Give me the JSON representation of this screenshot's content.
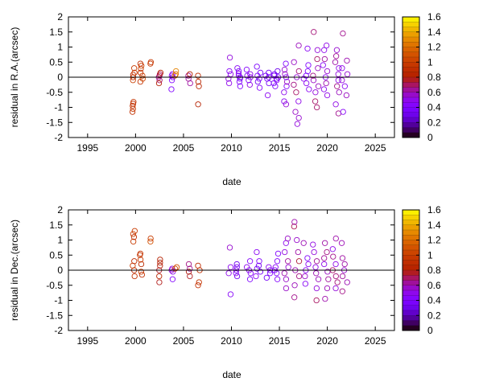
{
  "chart_data": [
    {
      "type": "scatter",
      "title": "",
      "xlabel": "date",
      "ylabel": "residual in R.A.(arcsec)",
      "xlim": [
        1993,
        2027
      ],
      "ylim": [
        -2,
        2
      ],
      "xticks": [
        1995,
        2000,
        2005,
        2010,
        2015,
        2020,
        2025
      ],
      "yticks": [
        -2,
        -1.5,
        -1,
        -0.5,
        0,
        0.5,
        1,
        1.5,
        2
      ],
      "zero_line": true,
      "grid": false,
      "marker": "open-circle",
      "colorbar": {
        "min": 0,
        "max": 1.6,
        "ticks": [
          0,
          0.2,
          0.4,
          0.6,
          0.8,
          1,
          1.2,
          1.4,
          1.6
        ],
        "colormap": "gnuplot-pm3d"
      },
      "clusters": [
        {
          "x": 1999.8,
          "xs": 0.12,
          "c": 0.9,
          "values": [
            -1.15,
            -1.05,
            -0.95,
            -0.88,
            -0.82,
            -0.1,
            0.0,
            0.08,
            0.15,
            0.3
          ]
        },
        {
          "x": 2000.6,
          "xs": 0.15,
          "c": 0.95,
          "values": [
            -0.15,
            -0.05,
            0.05,
            0.15,
            0.28,
            0.38,
            0.45
          ]
        },
        {
          "x": 2001.6,
          "xs": 0.05,
          "c": 1.0,
          "values": [
            0.45,
            0.5
          ]
        },
        {
          "x": 2002.5,
          "xs": 0.12,
          "c": 0.72,
          "values": [
            -0.2,
            -0.1,
            0.0,
            0.05,
            0.1,
            0.15
          ]
        },
        {
          "x": 2003.8,
          "xs": 0.1,
          "c": 0.5,
          "values": [
            -0.4,
            -0.1,
            0.0,
            0.05,
            0.1
          ]
        },
        {
          "x": 2004.2,
          "xs": 0.1,
          "c": 1.2,
          "values": [
            0.05,
            0.1,
            0.2
          ]
        },
        {
          "x": 2005.6,
          "xs": 0.1,
          "c": 0.72,
          "values": [
            -0.2,
            -0.05,
            0.05,
            0.1
          ]
        },
        {
          "x": 2006.6,
          "xs": 0.1,
          "c": 0.8,
          "values": [
            -0.9,
            -0.3,
            -0.15,
            0.05
          ]
        },
        {
          "x": 2009.8,
          "xs": 0.12,
          "c": 0.55,
          "values": [
            -0.2,
            -0.05,
            0.1,
            0.2,
            0.65
          ]
        },
        {
          "x": 2010.7,
          "xs": 0.25,
          "c": 0.4,
          "values": [
            -0.3,
            -0.15,
            -0.05,
            0.0,
            0.05,
            0.12,
            0.2,
            0.3
          ]
        },
        {
          "x": 2011.8,
          "xs": 0.25,
          "c": 0.45,
          "values": [
            -0.25,
            -0.1,
            0.0,
            0.05,
            0.1,
            0.25
          ]
        },
        {
          "x": 2012.8,
          "xs": 0.25,
          "c": 0.4,
          "values": [
            -0.35,
            -0.15,
            -0.05,
            0.05,
            0.15,
            0.35
          ]
        },
        {
          "x": 2013.8,
          "xs": 0.25,
          "c": 0.38,
          "values": [
            -0.6,
            -0.2,
            -0.05,
            0.0,
            0.05,
            0.15
          ]
        },
        {
          "x": 2014.7,
          "xs": 0.3,
          "c": 0.4,
          "values": [
            -0.3,
            -0.2,
            -0.1,
            -0.05,
            0.0,
            0.05,
            0.1,
            0.2
          ]
        },
        {
          "x": 2015.7,
          "xs": 0.3,
          "c": 0.5,
          "values": [
            -0.9,
            -0.8,
            -0.5,
            -0.3,
            -0.15,
            0.0,
            0.1,
            0.25,
            0.45
          ]
        },
        {
          "x": 2016.8,
          "xs": 0.3,
          "c": 0.6,
          "values": [
            -1.55,
            -1.35,
            -1.15,
            -0.8,
            -0.5,
            -0.25,
            0.0,
            0.2,
            0.5,
            1.05
          ]
        },
        {
          "x": 2017.8,
          "xs": 0.3,
          "c": 0.45,
          "values": [
            -0.4,
            -0.2,
            -0.05,
            0.05,
            0.2,
            0.4,
            0.95
          ]
        },
        {
          "x": 2018.8,
          "xs": 0.3,
          "c": 0.6,
          "values": [
            -1.0,
            -0.8,
            -0.5,
            -0.3,
            -0.1,
            0.05,
            0.3,
            0.6,
            0.9,
            1.5
          ]
        },
        {
          "x": 2019.8,
          "xs": 0.35,
          "c": 0.55,
          "values": [
            -0.6,
            -0.4,
            -0.2,
            0.0,
            0.2,
            0.4,
            0.6,
            0.9,
            1.05
          ]
        },
        {
          "x": 2020.9,
          "xs": 0.35,
          "c": 0.6,
          "values": [
            -1.2,
            -0.9,
            -0.5,
            -0.3,
            -0.1,
            0.1,
            0.3,
            0.5,
            0.7,
            0.9
          ]
        },
        {
          "x": 2021.8,
          "xs": 0.3,
          "c": 0.55,
          "values": [
            -1.15,
            -0.6,
            -0.3,
            -0.1,
            0.1,
            0.3,
            0.55,
            1.45
          ]
        }
      ]
    },
    {
      "type": "scatter",
      "title": "",
      "xlabel": "date",
      "ylabel": "residual in Dec.(arcsec)",
      "xlim": [
        1993,
        2027
      ],
      "ylim": [
        -2,
        2
      ],
      "xticks": [
        1995,
        2000,
        2005,
        2010,
        2015,
        2020,
        2025
      ],
      "yticks": [
        -2,
        -1.5,
        -1,
        -0.5,
        0,
        0.5,
        1,
        1.5,
        2
      ],
      "zero_line": true,
      "grid": false,
      "marker": "open-circle",
      "colorbar": {
        "min": 0,
        "max": 1.6,
        "ticks": [
          0,
          0.2,
          0.4,
          0.6,
          0.8,
          1,
          1.2,
          1.4,
          1.6
        ],
        "colormap": "gnuplot-pm3d"
      },
      "clusters": [
        {
          "x": 1999.8,
          "xs": 0.12,
          "c": 0.95,
          "values": [
            -0.2,
            0.0,
            0.15,
            0.3,
            0.95,
            1.1,
            1.2,
            1.3
          ]
        },
        {
          "x": 2000.6,
          "xs": 0.15,
          "c": 0.95,
          "values": [
            -0.15,
            -0.05,
            0.2,
            0.35,
            0.5,
            0.55
          ]
        },
        {
          "x": 2001.6,
          "xs": 0.05,
          "c": 1.0,
          "values": [
            0.95,
            1.05
          ]
        },
        {
          "x": 2002.5,
          "xs": 0.12,
          "c": 0.75,
          "values": [
            -0.4,
            -0.2,
            0.0,
            0.15,
            0.25,
            0.35
          ]
        },
        {
          "x": 2003.8,
          "xs": 0.1,
          "c": 0.5,
          "values": [
            -0.3,
            -0.05,
            0.0,
            0.05
          ]
        },
        {
          "x": 2004.2,
          "xs": 0.1,
          "c": 1.1,
          "values": [
            0.05,
            0.1
          ]
        },
        {
          "x": 2005.6,
          "xs": 0.1,
          "c": 0.7,
          "values": [
            -0.2,
            -0.05,
            0.05,
            0.2
          ]
        },
        {
          "x": 2006.6,
          "xs": 0.1,
          "c": 0.85,
          "values": [
            -0.5,
            -0.4,
            0.0,
            0.15
          ]
        },
        {
          "x": 2009.8,
          "xs": 0.12,
          "c": 0.55,
          "values": [
            -0.8,
            -0.1,
            0.1,
            0.75
          ]
        },
        {
          "x": 2010.7,
          "xs": 0.25,
          "c": 0.4,
          "values": [
            -0.2,
            -0.1,
            0.0,
            0.1,
            0.2
          ]
        },
        {
          "x": 2011.8,
          "xs": 0.25,
          "c": 0.45,
          "values": [
            -0.3,
            -0.1,
            0.0,
            0.1,
            0.3
          ]
        },
        {
          "x": 2012.8,
          "xs": 0.25,
          "c": 0.4,
          "values": [
            -0.2,
            -0.05,
            0.05,
            0.15,
            0.3,
            0.6
          ]
        },
        {
          "x": 2013.8,
          "xs": 0.25,
          "c": 0.4,
          "values": [
            -0.25,
            -0.1,
            0.0,
            0.1
          ]
        },
        {
          "x": 2014.7,
          "xs": 0.3,
          "c": 0.45,
          "values": [
            -0.3,
            -0.1,
            0.0,
            0.1,
            0.3,
            0.55
          ]
        },
        {
          "x": 2015.7,
          "xs": 0.3,
          "c": 0.55,
          "values": [
            -0.6,
            -0.3,
            -0.1,
            0.1,
            0.3,
            0.6,
            0.9,
            1.05
          ]
        },
        {
          "x": 2016.8,
          "xs": 0.3,
          "c": 0.65,
          "values": [
            -0.9,
            -0.5,
            -0.2,
            0.0,
            0.3,
            0.6,
            1.0,
            1.45,
            1.6
          ]
        },
        {
          "x": 2017.8,
          "xs": 0.3,
          "c": 0.5,
          "values": [
            -0.45,
            -0.2,
            0.0,
            0.2,
            0.4,
            0.9
          ]
        },
        {
          "x": 2018.8,
          "xs": 0.3,
          "c": 0.6,
          "values": [
            -1.0,
            -0.6,
            -0.3,
            -0.1,
            0.1,
            0.3,
            0.6,
            0.85
          ]
        },
        {
          "x": 2019.8,
          "xs": 0.35,
          "c": 0.6,
          "values": [
            -0.95,
            -0.6,
            -0.3,
            -0.05,
            0.2,
            0.4,
            0.6,
            0.9
          ]
        },
        {
          "x": 2020.9,
          "xs": 0.35,
          "c": 0.6,
          "values": [
            -0.6,
            -0.4,
            -0.2,
            0.0,
            0.2,
            0.45,
            0.7,
            1.05
          ]
        },
        {
          "x": 2021.8,
          "xs": 0.3,
          "c": 0.6,
          "values": [
            -0.7,
            -0.4,
            -0.2,
            0.0,
            0.2,
            0.4,
            0.9
          ]
        }
      ]
    }
  ]
}
